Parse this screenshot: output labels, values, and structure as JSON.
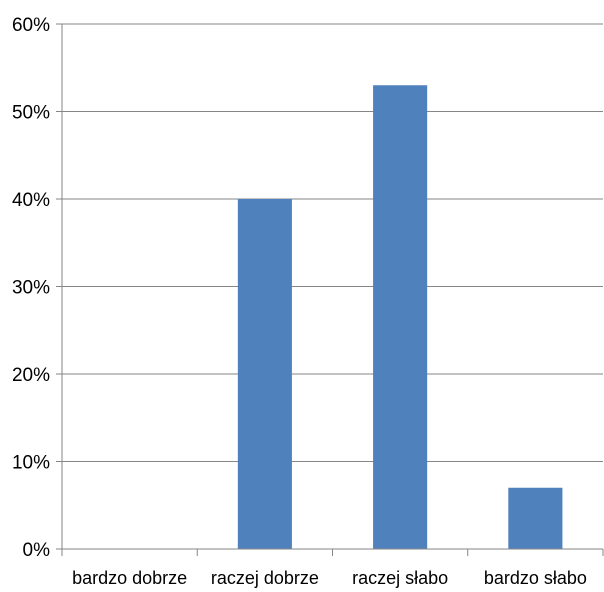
{
  "chart_data": {
    "type": "bar",
    "categories": [
      "bardzo dobrze",
      "raczej dobrze",
      "raczej słabo",
      "bardzo słabo"
    ],
    "values": [
      0,
      40,
      53,
      7
    ],
    "y_tick_labels": [
      "0%",
      "10%",
      "20%",
      "30%",
      "40%",
      "50%",
      "60%"
    ],
    "ylim": [
      0,
      60
    ],
    "grid": true,
    "legend": "none",
    "bar_color": "#4f81bd",
    "title": "",
    "xlabel": "",
    "ylabel": ""
  }
}
